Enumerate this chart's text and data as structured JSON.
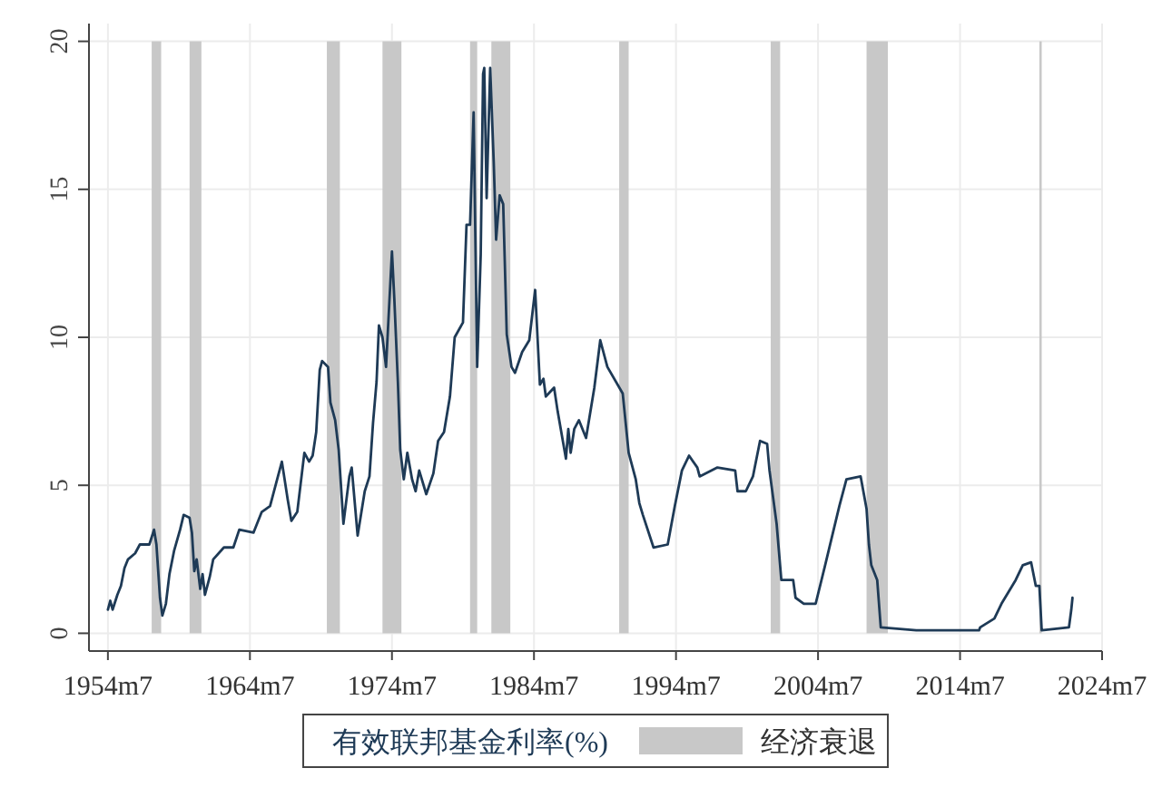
{
  "chart_data": {
    "type": "line",
    "x": [
      "1954-07",
      "1954-09",
      "1954-11",
      "1955-03",
      "1955-06",
      "1955-09",
      "1955-12",
      "1956-06",
      "1956-10",
      "1957-06",
      "1957-10",
      "1957-12",
      "1958-03",
      "1958-05",
      "1958-08",
      "1958-11",
      "1959-03",
      "1959-08",
      "1959-11",
      "1960-04",
      "1960-06",
      "1960-08",
      "1960-10",
      "1961-01",
      "1961-03",
      "1961-05",
      "1961-09",
      "1961-12",
      "1962-09",
      "1963-05",
      "1963-10",
      "1964-10",
      "1965-05",
      "1965-12",
      "1966-06",
      "1966-10",
      "1967-03",
      "1967-06",
      "1967-11",
      "1968-05",
      "1968-09",
      "1968-12",
      "1969-03",
      "1969-06",
      "1969-08",
      "1970-01",
      "1970-03",
      "1970-07",
      "1970-10",
      "1971-02",
      "1971-07",
      "1971-09",
      "1972-02",
      "1972-08",
      "1972-12",
      "1973-03",
      "1973-06",
      "1973-08",
      "1973-11",
      "1974-02",
      "1974-07",
      "1974-09",
      "1974-12",
      "1975-02",
      "1975-05",
      "1975-08",
      "1975-12",
      "1976-03",
      "1976-06",
      "1976-12",
      "1977-06",
      "1977-10",
      "1978-03",
      "1978-08",
      "1978-12",
      "1979-07",
      "1979-10",
      "1980-01",
      "1980-04",
      "1980-07",
      "1980-10",
      "1980-12",
      "1981-01",
      "1981-03",
      "1981-06",
      "1981-09",
      "1981-11",
      "1982-02",
      "1982-05",
      "1982-08",
      "1982-12",
      "1983-03",
      "1983-09",
      "1984-03",
      "1984-08",
      "1984-12",
      "1985-03",
      "1985-05",
      "1985-12",
      "1986-03",
      "1986-10",
      "1986-12",
      "1987-02",
      "1987-05",
      "1987-09",
      "1988-03",
      "1988-10",
      "1989-03",
      "1989-09",
      "1990-10",
      "1991-03",
      "1991-09",
      "1991-12",
      "1992-03",
      "1992-12",
      "1993-12",
      "1994-06",
      "1994-12",
      "1995-06",
      "1996-01",
      "1996-03",
      "1997-06",
      "1998-09",
      "1998-11",
      "1999-06",
      "1999-12",
      "2000-06",
      "2000-12",
      "2001-02",
      "2001-08",
      "2001-12",
      "2002-10",
      "2002-12",
      "2003-07",
      "2004-05",
      "2005-01",
      "2006-01",
      "2006-07",
      "2007-07",
      "2007-12",
      "2008-02",
      "2008-04",
      "2008-09",
      "2008-12",
      "2011-06",
      "2015-11",
      "2015-12",
      "2016-12",
      "2017-06",
      "2018-06",
      "2018-12",
      "2019-07",
      "2019-11",
      "2020-02",
      "2020-04",
      "2022-03",
      "2022-05",
      "2022-06"
    ],
    "series": [
      {
        "name": "有效联邦基金利率(%)",
        "color": "#1e3a56",
        "values": [
          0.8,
          1.1,
          0.8,
          1.3,
          1.6,
          2.2,
          2.5,
          2.7,
          3.0,
          3.0,
          3.5,
          3.0,
          1.2,
          0.6,
          1.0,
          2.0,
          2.8,
          3.5,
          4.0,
          3.9,
          3.4,
          2.1,
          2.5,
          1.5,
          2.0,
          1.3,
          1.9,
          2.5,
          2.9,
          2.9,
          3.5,
          3.4,
          4.1,
          4.3,
          5.2,
          5.8,
          4.5,
          3.8,
          4.1,
          6.1,
          5.8,
          6.0,
          6.8,
          8.9,
          9.2,
          9.0,
          7.8,
          7.2,
          6.2,
          3.7,
          5.3,
          5.6,
          3.3,
          4.8,
          5.3,
          7.1,
          8.5,
          10.4,
          10.0,
          9.0,
          12.9,
          11.3,
          8.5,
          6.2,
          5.2,
          6.1,
          5.2,
          4.8,
          5.5,
          4.7,
          5.4,
          6.5,
          6.8,
          8.0,
          10.0,
          10.5,
          13.8,
          13.8,
          17.6,
          9.0,
          12.8,
          18.9,
          19.1,
          14.7,
          19.1,
          15.9,
          13.3,
          14.8,
          14.5,
          10.1,
          9.0,
          8.8,
          9.5,
          9.9,
          11.6,
          8.4,
          8.6,
          8.0,
          8.3,
          7.5,
          5.9,
          6.9,
          6.1,
          6.9,
          7.2,
          6.6,
          8.3,
          9.9,
          9.0,
          8.1,
          6.1,
          5.2,
          4.4,
          4.0,
          2.9,
          3.0,
          4.3,
          5.5,
          6.0,
          5.6,
          5.3,
          5.6,
          5.5,
          4.8,
          4.8,
          5.3,
          6.5,
          6.4,
          5.5,
          3.7,
          1.8,
          1.8,
          1.2,
          1.0,
          1.0,
          2.3,
          4.3,
          5.2,
          5.3,
          4.2,
          3.0,
          2.3,
          1.8,
          0.2,
          0.1,
          0.1,
          0.2,
          0.5,
          1.0,
          1.8,
          2.3,
          2.4,
          1.6,
          1.6,
          0.1,
          0.2,
          0.8,
          1.2
        ]
      }
    ],
    "xlim": [
      "1953-03",
      "2024-07"
    ],
    "xticks": [
      {
        "value": "1954-07",
        "label": "1954m7"
      },
      {
        "value": "1964-07",
        "label": "1964m7"
      },
      {
        "value": "1974-07",
        "label": "1974m7"
      },
      {
        "value": "1984-07",
        "label": "1984m7"
      },
      {
        "value": "1994-07",
        "label": "1994m7"
      },
      {
        "value": "2004-07",
        "label": "2004m7"
      },
      {
        "value": "2014-07",
        "label": "2014m7"
      },
      {
        "value": "2024-07",
        "label": "2024m7"
      }
    ],
    "ylim": [
      -0.6,
      20.6
    ],
    "yticks": [
      0,
      5,
      10,
      15,
      20
    ],
    "bands": [
      {
        "axis": "x",
        "from": "1957-08",
        "to": "1958-04",
        "label": "经济衰退",
        "color": "#c8c8c8"
      },
      {
        "axis": "x",
        "from": "1960-04",
        "to": "1961-02",
        "color": "#c8c8c8"
      },
      {
        "axis": "x",
        "from": "1969-12",
        "to": "1970-11",
        "color": "#c8c8c8"
      },
      {
        "axis": "x",
        "from": "1973-11",
        "to": "1975-03",
        "color": "#c8c8c8"
      },
      {
        "axis": "x",
        "from": "1980-01",
        "to": "1980-07",
        "color": "#c8c8c8"
      },
      {
        "axis": "x",
        "from": "1981-07",
        "to": "1982-11",
        "color": "#c8c8c8"
      },
      {
        "axis": "x",
        "from": "1990-07",
        "to": "1991-03",
        "color": "#c8c8c8"
      },
      {
        "axis": "x",
        "from": "2001-03",
        "to": "2001-11",
        "color": "#c8c8c8"
      },
      {
        "axis": "x",
        "from": "2007-12",
        "to": "2009-06",
        "color": "#c8c8c8"
      },
      {
        "axis": "x",
        "from": "2020-02",
        "to": "2020-04",
        "color": "#c8c8c8"
      }
    ],
    "grid": true,
    "legend": "bottom"
  }
}
